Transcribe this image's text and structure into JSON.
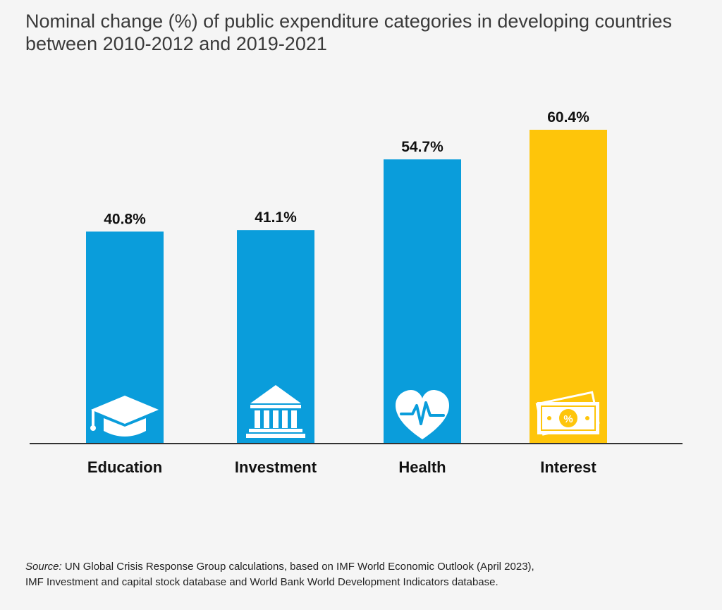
{
  "title": {
    "line1": "Nominal change (%) of public expenditure categories in developing countries",
    "line2": "between 2010-2012 and 2019-2021"
  },
  "chart_data": {
    "type": "bar",
    "title": "Nominal change (%) of public expenditure categories in developing countries between 2010-2012 and 2019-2021",
    "categories": [
      "Education",
      "Investment",
      "Health",
      "Interest"
    ],
    "values": [
      40.8,
      41.1,
      54.7,
      60.4
    ],
    "value_labels": [
      "40.8%",
      "41.1%",
      "54.7%",
      "60.4%"
    ],
    "colors": [
      "#0a9ddb",
      "#0a9ddb",
      "#0a9ddb",
      "#fec50a"
    ],
    "icons": [
      "graduation-cap-icon",
      "bank-building-icon",
      "heart-pulse-icon",
      "money-percent-icon"
    ],
    "xlabel": "",
    "ylabel": "",
    "ylim": [
      0,
      60.4
    ],
    "grid": false,
    "legend": "none"
  },
  "source": {
    "prefix": "Source:",
    "line1": " UN Global Crisis Response Group calculations, based on IMF World Economic Outlook (April 2023),",
    "line2": "IMF Investment and capital stock database and World Bank World Development Indicators database."
  }
}
